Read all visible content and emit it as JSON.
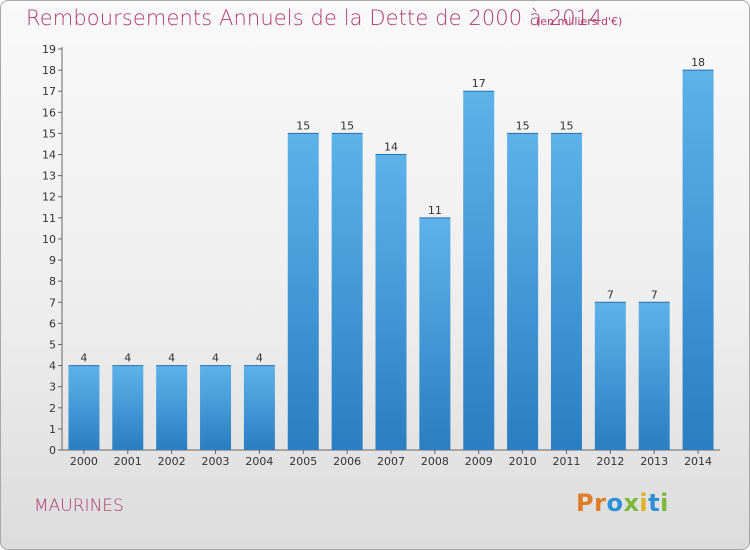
{
  "header": {
    "title": "Remboursements Annuels de la Dette de 2000 à 2014",
    "unit": "(en milliers d'€)"
  },
  "footer": {
    "commune": "MAURINES",
    "logo_text": "Proxiti"
  },
  "colors": {
    "title": "#b03a6c",
    "bar_top": "#5eb2ea",
    "bar_bottom": "#2a7ec1",
    "logo": [
      "#e07b2a",
      "#e07b2a",
      "#2d8fd6",
      "#7cb83b",
      "#e0b020",
      "#2d8fd6",
      "#7cb83b"
    ]
  },
  "chart_data": {
    "type": "bar",
    "title": "Remboursements Annuels de la Dette de 2000 à 2014",
    "categories": [
      "2000",
      "2001",
      "2002",
      "2003",
      "2004",
      "2005",
      "2006",
      "2007",
      "2008",
      "2009",
      "2010",
      "2011",
      "2012",
      "2013",
      "2014"
    ],
    "values": [
      4,
      4,
      4,
      4,
      4,
      15,
      15,
      14,
      11,
      17,
      15,
      15,
      7,
      7,
      18
    ],
    "xlabel": "",
    "ylabel": "",
    "ylim": [
      0,
      19
    ],
    "yticks": [
      0,
      1,
      2,
      3,
      4,
      5,
      6,
      7,
      8,
      9,
      10,
      11,
      12,
      13,
      14,
      15,
      16,
      17,
      18,
      19
    ],
    "grid": false,
    "data_labels": true
  }
}
